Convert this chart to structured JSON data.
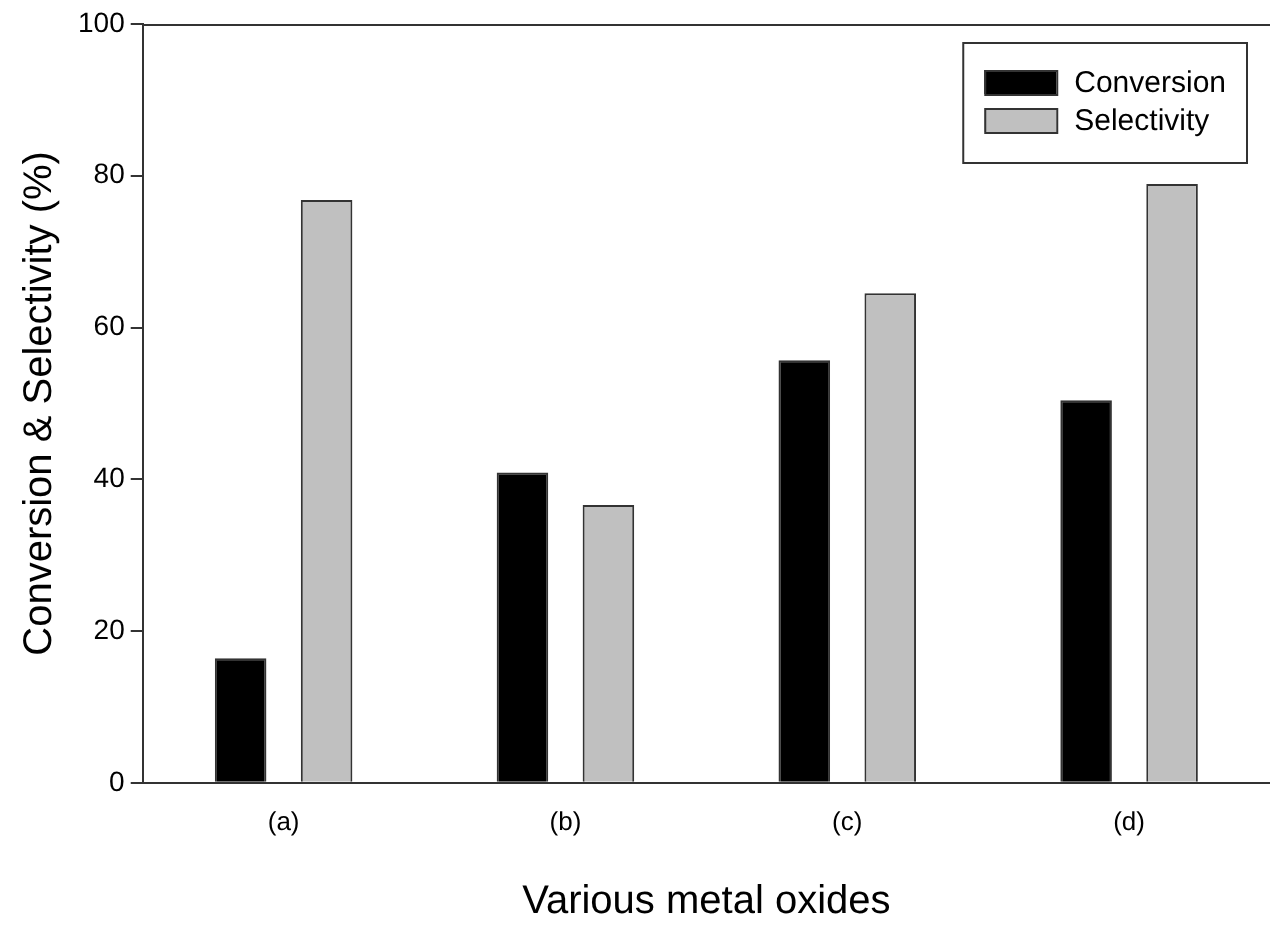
{
  "chart_data": {
    "type": "bar",
    "xlabel": "Various metal oxides",
    "ylabel": "Conversion & Selectivity (%)",
    "categories": [
      "(a)",
      "(b)",
      "(c)",
      "(d)"
    ],
    "series": [
      {
        "name": "Conversion",
        "color": "#000000",
        "values": [
          16.4,
          40.9,
          55.7,
          50.4
        ]
      },
      {
        "name": "Selectivity",
        "color": "#c0c0c0",
        "values": [
          76.8,
          36.6,
          64.5,
          78.9
        ]
      }
    ],
    "ylim": [
      0,
      100
    ],
    "yticks": [
      0,
      20,
      40,
      60,
      80,
      100
    ],
    "grid": false,
    "legend": "top right"
  }
}
